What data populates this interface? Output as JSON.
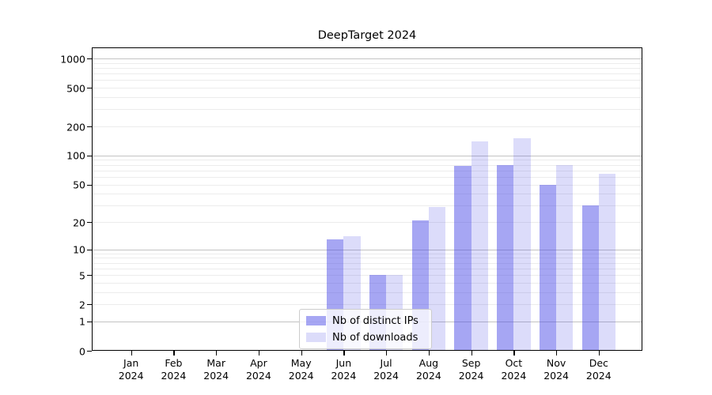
{
  "chart_data": {
    "type": "bar",
    "title": "DeepTarget 2024",
    "categories": [
      "Jan",
      "Feb",
      "Mar",
      "Apr",
      "May",
      "Jun",
      "Jul",
      "Aug",
      "Sep",
      "Oct",
      "Nov",
      "Dec"
    ],
    "x_year_label": "2024",
    "series": [
      {
        "name": "Nb of distinct IPs",
        "fill": "rgba(70,70,230,0.48)",
        "values": [
          0,
          0,
          0,
          0,
          0,
          13,
          5,
          21,
          78,
          80,
          50,
          30
        ]
      },
      {
        "name": "Nb of downloads",
        "fill": "rgba(70,70,230,0.19)",
        "values": [
          0,
          0,
          0,
          0,
          0,
          14,
          5,
          29,
          140,
          150,
          80,
          65
        ]
      }
    ],
    "y_ticks": [
      0,
      1,
      2,
      5,
      10,
      20,
      50,
      100,
      200,
      500,
      1000
    ],
    "y_scale": "log1p",
    "ylim": [
      0,
      1300
    ],
    "grid": true,
    "legend_position": "lower center",
    "colors": {
      "major_grid": "#c3c3c3",
      "minor_grid": "#ececec",
      "axis": "#000000",
      "bar_base": "#4646e6"
    }
  }
}
